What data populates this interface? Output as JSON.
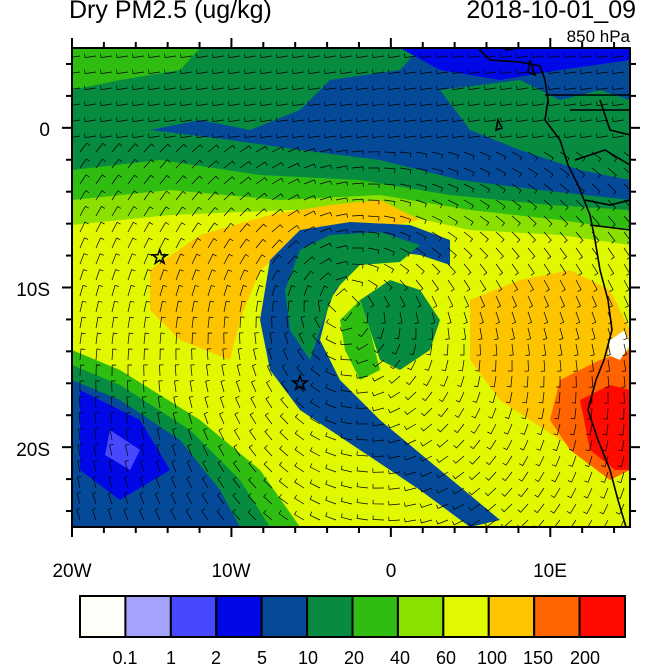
{
  "title": "Dry PM2.5 (ug/kg)",
  "time": "2018-10-01_09",
  "level": "850 hPa",
  "map": {
    "lon_range": [
      -20,
      15
    ],
    "lat_range": [
      -25,
      5
    ],
    "x_ticks": [
      {
        "lon": -20,
        "label": "20W"
      },
      {
        "lon": -10,
        "label": "10W"
      },
      {
        "lon": 0,
        "label": "0"
      },
      {
        "lon": 10,
        "label": "10E"
      }
    ],
    "y_ticks": [
      {
        "lat": 0,
        "label": "0"
      },
      {
        "lat": -10,
        "label": "10S"
      },
      {
        "lat": -20,
        "label": "20S"
      }
    ],
    "markers": [
      {
        "type": "star",
        "lon": -14.5,
        "lat": -8.1
      },
      {
        "type": "star",
        "lon": -5.7,
        "lat": -16.0
      }
    ],
    "overlays": [
      "wind-barbs",
      "coastlines",
      "country-borders"
    ]
  },
  "colorbar": {
    "labels": [
      "0.1",
      "1",
      "2",
      "5",
      "10",
      "20",
      "40",
      "60",
      "100",
      "150",
      "200"
    ],
    "colors": [
      "#fffffa",
      "#a4a4ff",
      "#4848ff",
      "#0008e8",
      "#044a98",
      "#068b40",
      "#2fbd12",
      "#8ae000",
      "#e0f800",
      "#ffc400",
      "#ff6400",
      "#ff0a00"
    ]
  }
}
